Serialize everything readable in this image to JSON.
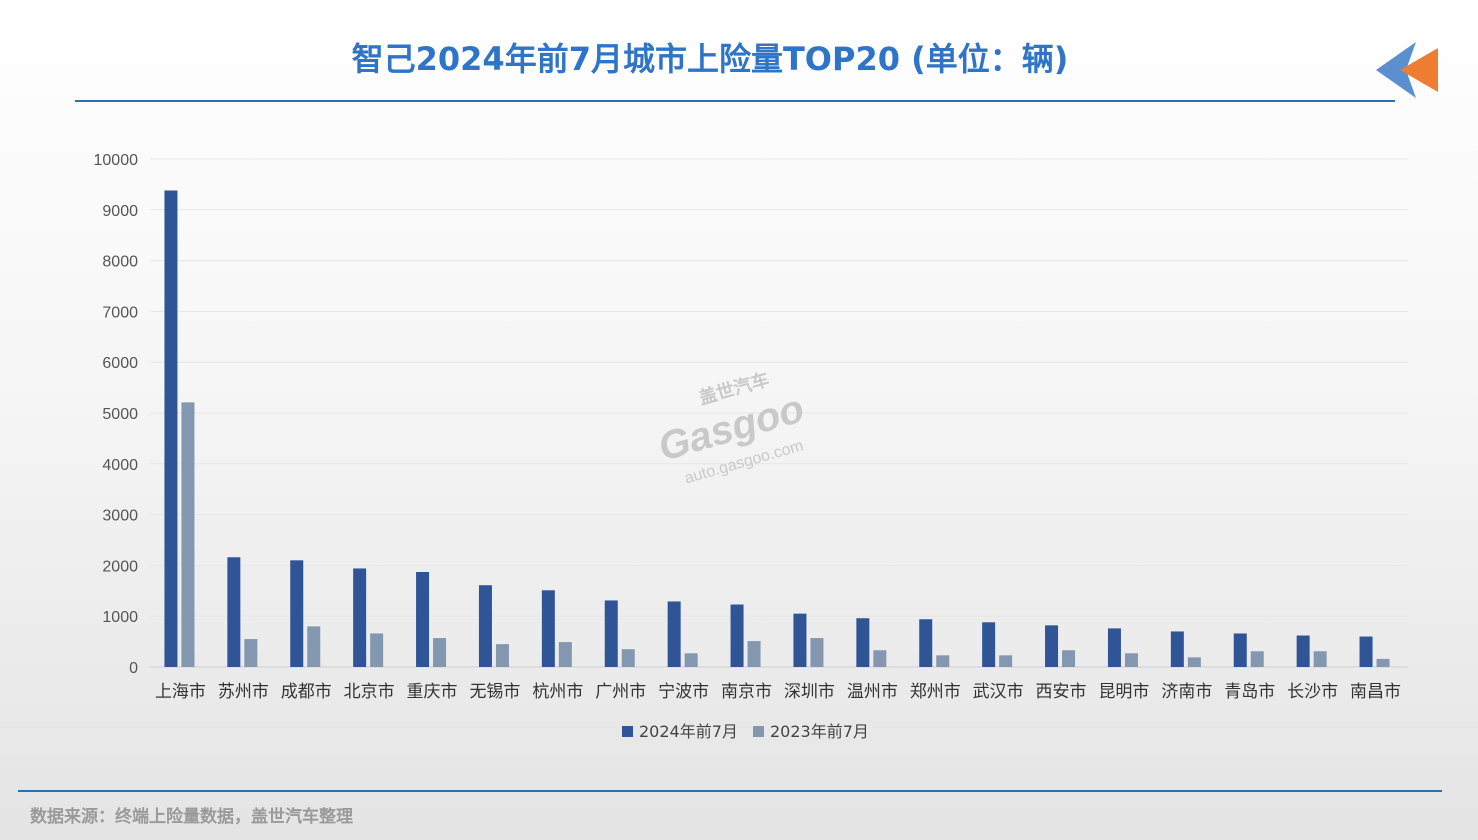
{
  "header": {
    "title": "智己2024年前7月城市上险量TOP20 (单位：辆)"
  },
  "footer": {
    "source": "数据来源：终端上险量数据，盖世汽车整理"
  },
  "watermark": {
    "brand_cn": "盖世汽车",
    "brand_en": "Gasgoo",
    "url": "auto.gasgoo.com"
  },
  "colors": {
    "title": "#2e75c8",
    "series_2024": "#2f5597",
    "series_2023": "#8497b0",
    "logo_blue": "#5b8fd0",
    "logo_orange": "#ed7d31"
  },
  "chart_data": {
    "type": "bar",
    "categories": [
      "上海市",
      "苏州市",
      "成都市",
      "北京市",
      "重庆市",
      "无锡市",
      "杭州市",
      "广州市",
      "宁波市",
      "南京市",
      "深圳市",
      "温州市",
      "郑州市",
      "武汉市",
      "西安市",
      "昆明市",
      "济南市",
      "青岛市",
      "长沙市",
      "南昌市"
    ],
    "series": [
      {
        "name": "2024年前7月",
        "color": "#2f5597",
        "values": [
          9380,
          2160,
          2100,
          1940,
          1870,
          1610,
          1510,
          1310,
          1290,
          1230,
          1050,
          960,
          940,
          880,
          820,
          760,
          700,
          660,
          620,
          600
        ]
      },
      {
        "name": "2023年前7月",
        "color": "#8497b0",
        "values": [
          5210,
          550,
          800,
          660,
          570,
          450,
          490,
          350,
          270,
          510,
          570,
          330,
          230,
          230,
          330,
          270,
          190,
          310,
          310,
          160
        ]
      }
    ],
    "ylim": [
      0,
      10000
    ],
    "yticks": [
      0,
      1000,
      2000,
      3000,
      4000,
      5000,
      6000,
      7000,
      8000,
      9000,
      10000
    ],
    "grid": true,
    "legend": "bottom"
  }
}
